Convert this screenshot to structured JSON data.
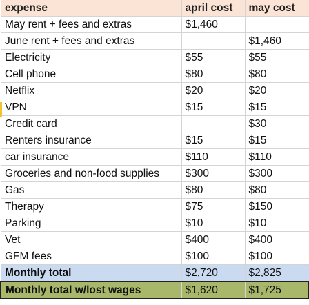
{
  "columns": {
    "expense": "expense",
    "april": "april cost",
    "may": "may cost"
  },
  "rows": [
    {
      "expense": "May rent + fees and extras",
      "april": "$1,460",
      "may": ""
    },
    {
      "expense": "June rent + fees and extras",
      "april": "",
      "may": "$1,460"
    },
    {
      "expense": "Electricity",
      "april": "$55",
      "may": "$55"
    },
    {
      "expense": "Cell phone",
      "april": "$80",
      "may": "$80"
    },
    {
      "expense": "Netflix",
      "april": "$20",
      "may": "$20"
    },
    {
      "expense": "VPN",
      "april": "$15",
      "may": "$15"
    },
    {
      "expense": "Credit card",
      "april": "",
      "may": "$30"
    },
    {
      "expense": "Renters insurance",
      "april": "$15",
      "may": "$15"
    },
    {
      "expense": "car insurance",
      "april": "$110",
      "may": "$110"
    },
    {
      "expense": "Groceries and non-food supplies",
      "april": "$300",
      "may": "$300"
    },
    {
      "expense": "Gas",
      "april": "$80",
      "may": "$80"
    },
    {
      "expense": "Therapy",
      "april": "$75",
      "may": "$150"
    },
    {
      "expense": "Parking",
      "april": "$10",
      "may": "$10"
    },
    {
      "expense": "Vet",
      "april": "$400",
      "may": "$400"
    },
    {
      "expense": "GFM fees",
      "april": "$100",
      "may": "$100"
    }
  ],
  "total": {
    "expense": "Monthly total",
    "april": "$2,720",
    "may": "$2,825"
  },
  "total_lost_wages": {
    "expense": "Monthly total w/lost wages",
    "april": "$1,620",
    "may": "$1,725"
  },
  "colors": {
    "header_fill": "#fbe4d5",
    "total_fill": "#c9daf1",
    "lost_wages_fill": "#a9b76a",
    "selection_marker": "#f1c232"
  }
}
